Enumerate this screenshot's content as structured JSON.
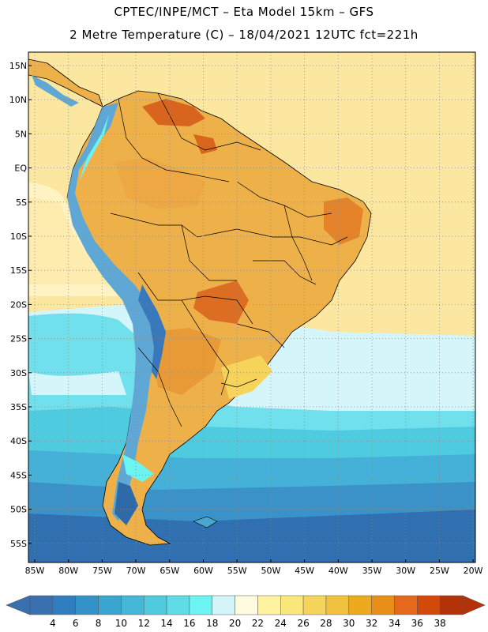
{
  "title": {
    "line1": "CPTEC/INPE/MCT –  Eta Model 15km – GFS",
    "line2": "2 Metre Temperature (C) – 18/04/2021 12UTC fct=221h"
  },
  "lat_ticks": [
    "15N",
    "10N",
    "5N",
    "EQ",
    "5S",
    "10S",
    "15S",
    "20S",
    "25S",
    "30S",
    "35S",
    "40S",
    "45S",
    "50S",
    "55S"
  ],
  "lon_ticks": [
    "85W",
    "80W",
    "75W",
    "70W",
    "65W",
    "60W",
    "55W",
    "50W",
    "45W",
    "40W",
    "35W",
    "30W",
    "25W",
    "20W"
  ],
  "colorbar": {
    "labels": [
      "4",
      "6",
      "8",
      "10",
      "12",
      "14",
      "16",
      "18",
      "20",
      "22",
      "24",
      "26",
      "28",
      "30",
      "32",
      "34",
      "36",
      "38"
    ],
    "colors": [
      "#3a70b0",
      "#2f7fc0",
      "#3392c7",
      "#3aa6cf",
      "#45b8d8",
      "#4fcbe0",
      "#5edde6",
      "#6cf4f2",
      "#d4f6fb",
      "#fffbe0",
      "#fff3a0",
      "#fbe87a",
      "#f6d45a",
      "#f1c140",
      "#edaa1e",
      "#ea8e1a",
      "#e4691a",
      "#d24a0a",
      "#b33208"
    ],
    "left_end_color": "#3a6fb0",
    "right_end_color": "#b33208"
  },
  "colors": {
    "ocean_warm": "#fbe7a0",
    "ocean_pale": "#fff8dc",
    "ocean_cyan": "#6fe0ec",
    "ocean_light_cyan": "#d4f6fb",
    "ocean_cold": "#3a78bc",
    "ocean_mid": "#4aa8d0",
    "land_hot": "#e99a2a",
    "land_very_hot": "#d9641e",
    "andes": "#5fa8d6",
    "frame": "#000000"
  }
}
